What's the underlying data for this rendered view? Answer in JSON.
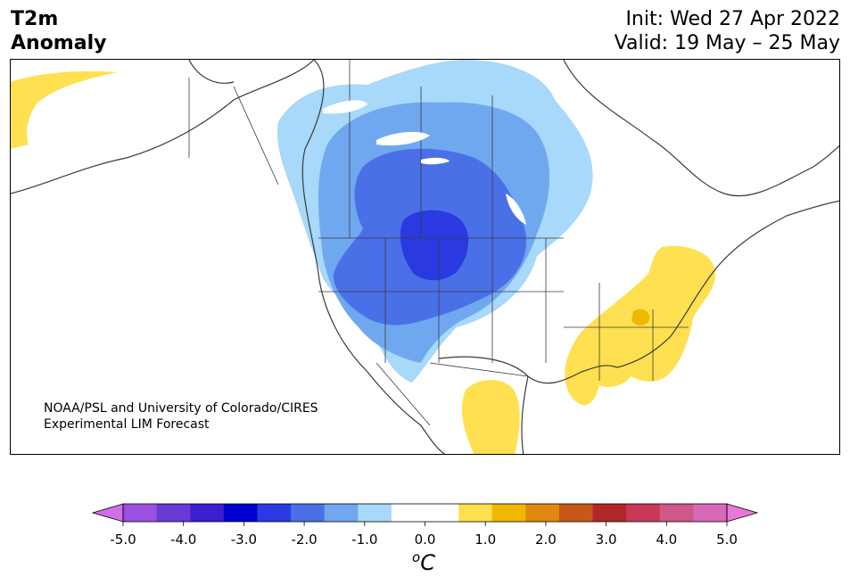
{
  "header": {
    "title_line1": "T2m",
    "title_line2": "Anomaly",
    "init": "Init: Wed 27 Apr 2022",
    "valid": "Valid: 19 May – 25 May"
  },
  "credit": {
    "line1": "NOAA/PSL and University of Colorado/CIRES",
    "line2": "Experimental LIM Forecast"
  },
  "colorbar": {
    "unit_base": "C",
    "unit_sup": "o",
    "low_extend_color": "#d070e8",
    "high_extend_color": "#e878d8",
    "bins": [
      "#9a50e0",
      "#6a3ad8",
      "#3a20d0",
      "#0000d0",
      "#2a3ae0",
      "#4a70e8",
      "#70a8f0",
      "#a8d8fa",
      "#ffffff",
      "#ffffff",
      "#ffe050",
      "#f0b800",
      "#e08810",
      "#c85818",
      "#b02828",
      "#c83858",
      "#d05888",
      "#d868b8"
    ],
    "ticks": [
      "-5.0",
      "-4.0",
      "-3.0",
      "-2.0",
      "-1.0",
      "0.0",
      "1.0",
      "2.0",
      "3.0",
      "4.0",
      "5.0"
    ]
  },
  "map": {
    "anomaly_colors": {
      "light_blue": "#a8d8fa",
      "mid_blue": "#70a8f0",
      "blue": "#4a70e8",
      "deep_blue": "#2a3ae0",
      "yellow": "#ffe050",
      "orange": "#f0b800"
    }
  }
}
